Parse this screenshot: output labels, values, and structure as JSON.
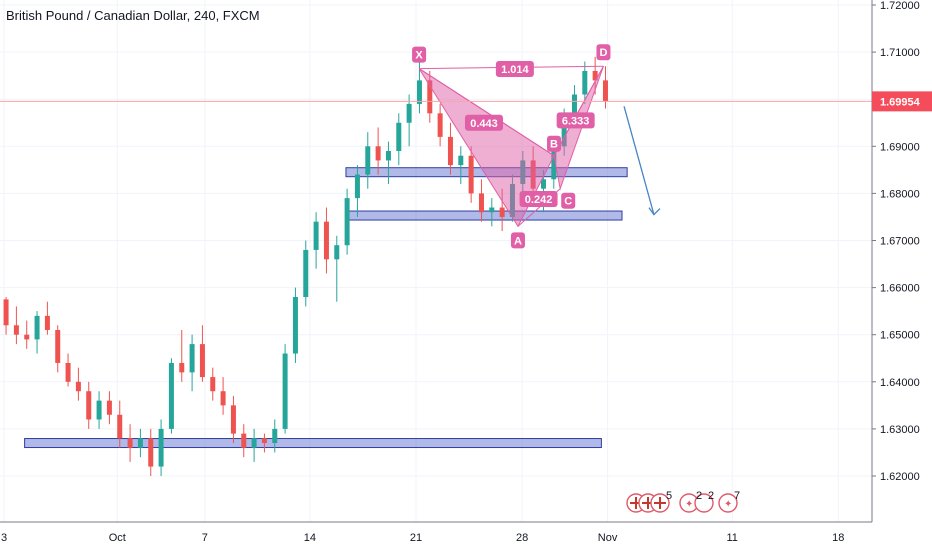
{
  "header": {
    "title": "British Pound / Canadian Dollar, 240, FXCM"
  },
  "price_badge": {
    "value": "1.69954",
    "color": "#f44c5b"
  },
  "colors": {
    "up": "#26a69a",
    "down": "#ef5350",
    "pattern": "#e05fa6",
    "zone": "#6f7fd3",
    "arrow": "#4a84c2"
  },
  "events": {
    "flags": "5",
    "count_a": "2",
    "count_b": "2",
    "count_c": "7"
  },
  "chart_data": {
    "type": "candlestick",
    "ylim": [
      1.612,
      1.722
    ],
    "y_ticks": [
      "1.72000",
      "1.71000",
      "1.70000",
      "1.69000",
      "1.68000",
      "1.67000",
      "1.66000",
      "1.65000",
      "1.64000",
      "1.63000",
      "1.62000"
    ],
    "x_ticks": [
      {
        "label": "3",
        "day": 0
      },
      {
        "label": "Oct",
        "day": 11
      },
      {
        "label": "7",
        "day": 19.5
      },
      {
        "label": "14",
        "day": 29.7
      },
      {
        "label": "21",
        "day": 40
      },
      {
        "label": "28",
        "day": 50.3
      },
      {
        "label": "Nov",
        "day": 58.6
      },
      {
        "label": "11",
        "day": 70.7
      },
      {
        "label": "18",
        "day": 81
      }
    ],
    "last_price": 1.69954,
    "harmonic": {
      "points": [
        {
          "label": "X",
          "day": 40.3,
          "price": 1.7065
        },
        {
          "label": "A",
          "day": 49.9,
          "price": 1.673
        },
        {
          "label": "B",
          "day": 53.4,
          "price": 1.688
        },
        {
          "label": "C",
          "day": 54.0,
          "price": 1.681
        },
        {
          "label": "D",
          "day": 58.2,
          "price": 1.707
        }
      ],
      "ratios": [
        {
          "text": "1.014",
          "day": 49.6,
          "price": 1.7064
        },
        {
          "text": "0.443",
          "day": 46.6,
          "price": 1.695
        },
        {
          "text": "0.242",
          "day": 51.9,
          "price": 1.6788
        },
        {
          "text": "6.333",
          "day": 55.5,
          "price": 1.6955
        }
      ]
    },
    "zones": [
      {
        "from": 33.2,
        "to": 60.5,
        "price": 1.6845
      },
      {
        "from": 33.2,
        "to": 60.0,
        "price": 1.6753
      },
      {
        "from": 2,
        "to": 58.0,
        "price": 1.627
      }
    ],
    "projection": {
      "from_day": 60.2,
      "from_price": 1.6985,
      "to_day": 63.1,
      "to_price": 1.6755
    },
    "candles": [
      [
        1.6575,
        1.658,
        1.65,
        1.652
      ],
      [
        1.652,
        1.656,
        1.648,
        1.65
      ],
      [
        1.65,
        1.653,
        1.647,
        1.649
      ],
      [
        1.649,
        1.655,
        1.646,
        1.654
      ],
      [
        1.654,
        1.657,
        1.65,
        1.651
      ],
      [
        1.651,
        1.652,
        1.642,
        1.644
      ],
      [
        1.644,
        1.646,
        1.639,
        1.64
      ],
      [
        1.64,
        1.643,
        1.636,
        1.638
      ],
      [
        1.638,
        1.64,
        1.63,
        1.632
      ],
      [
        1.632,
        1.638,
        1.63,
        1.636
      ],
      [
        1.636,
        1.638,
        1.631,
        1.633
      ],
      [
        1.633,
        1.636,
        1.626,
        1.628
      ],
      [
        1.628,
        1.631,
        1.623,
        1.626
      ],
      [
        1.626,
        1.63,
        1.624,
        1.628
      ],
      [
        1.628,
        1.63,
        1.62,
        1.622
      ],
      [
        1.622,
        1.632,
        1.62,
        1.63
      ],
      [
        1.63,
        1.645,
        1.629,
        1.644
      ],
      [
        1.644,
        1.651,
        1.64,
        1.642
      ],
      [
        1.642,
        1.65,
        1.638,
        1.648
      ],
      [
        1.648,
        1.652,
        1.64,
        1.641
      ],
      [
        1.641,
        1.643,
        1.636,
        1.638
      ],
      [
        1.638,
        1.641,
        1.633,
        1.635
      ],
      [
        1.635,
        1.637,
        1.627,
        1.629
      ],
      [
        1.629,
        1.631,
        1.624,
        1.626
      ],
      [
        1.626,
        1.63,
        1.623,
        1.628
      ],
      [
        1.628,
        1.629,
        1.625,
        1.627
      ],
      [
        1.627,
        1.632,
        1.625,
        1.63
      ],
      [
        1.63,
        1.648,
        1.629,
        1.646
      ],
      [
        1.646,
        1.66,
        1.644,
        1.658
      ],
      [
        1.658,
        1.67,
        1.656,
        1.668
      ],
      [
        1.668,
        1.676,
        1.664,
        1.674
      ],
      [
        1.674,
        1.677,
        1.663,
        1.666
      ],
      [
        1.666,
        1.671,
        1.657,
        1.669
      ],
      [
        1.669,
        1.681,
        1.667,
        1.679
      ],
      [
        1.679,
        1.686,
        1.675,
        1.684
      ],
      [
        1.684,
        1.693,
        1.681,
        1.69
      ],
      [
        1.69,
        1.694,
        1.684,
        1.687
      ],
      [
        1.687,
        1.691,
        1.682,
        1.689
      ],
      [
        1.689,
        1.697,
        1.686,
        1.695
      ],
      [
        1.695,
        1.701,
        1.69,
        1.699
      ],
      [
        1.699,
        1.71,
        1.697,
        1.704
      ],
      [
        1.704,
        1.706,
        1.695,
        1.697
      ],
      [
        1.697,
        1.699,
        1.69,
        1.692
      ],
      [
        1.692,
        1.695,
        1.684,
        1.686
      ],
      [
        1.686,
        1.69,
        1.682,
        1.688
      ],
      [
        1.688,
        1.69,
        1.678,
        1.68
      ],
      [
        1.68,
        1.683,
        1.674,
        1.676
      ],
      [
        1.676,
        1.679,
        1.673,
        1.677
      ],
      [
        1.677,
        1.681,
        1.672,
        1.675
      ],
      [
        1.675,
        1.684,
        1.674,
        1.682
      ],
      [
        1.682,
        1.689,
        1.68,
        1.687
      ],
      [
        1.687,
        1.69,
        1.679,
        1.681
      ],
      [
        1.681,
        1.685,
        1.676,
        1.683
      ],
      [
        1.683,
        1.692,
        1.681,
        1.69
      ],
      [
        1.69,
        1.698,
        1.688,
        1.696
      ],
      [
        1.696,
        1.703,
        1.694,
        1.701
      ],
      [
        1.701,
        1.708,
        1.699,
        1.706
      ],
      [
        1.706,
        1.709,
        1.701,
        1.704
      ],
      [
        1.704,
        1.707,
        1.698,
        1.6995
      ]
    ]
  }
}
